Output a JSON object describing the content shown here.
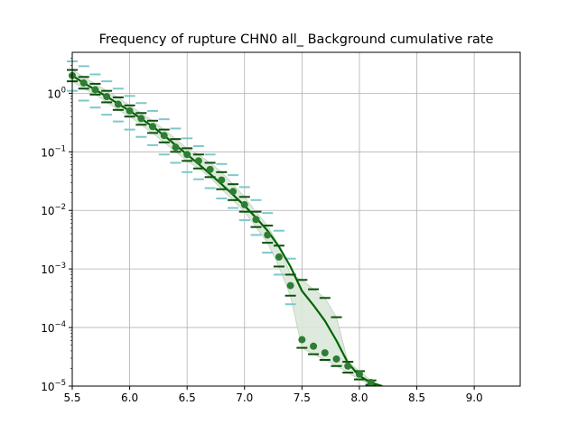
{
  "chart_data": {
    "type": "line",
    "title": "Frequency of rupture CHN0 all_ Background cumulative rate",
    "xlabel": "",
    "ylabel": "",
    "xlim": [
      5.5,
      9.4
    ],
    "ylim": [
      1e-05,
      5
    ],
    "yscale": "log",
    "grid": true,
    "x_ticks": [
      5.5,
      6.0,
      6.5,
      7.0,
      7.5,
      8.0,
      8.5,
      9.0
    ],
    "x_tick_labels": [
      "5.5",
      "6.0",
      "6.5",
      "7.0",
      "7.5",
      "8.0",
      "8.5",
      "9.0"
    ],
    "y_ticks": [
      1e-05,
      0.0001,
      0.001,
      0.01,
      0.1,
      1
    ],
    "y_tick_labels": [
      {
        "base": "10",
        "exp": "−5"
      },
      {
        "base": "10",
        "exp": "−4"
      },
      {
        "base": "10",
        "exp": "−3"
      },
      {
        "base": "10",
        "exp": "−2"
      },
      {
        "base": "10",
        "exp": "−1"
      },
      {
        "base": "10",
        "exp": "0"
      }
    ],
    "colors": {
      "model_line": "#006400",
      "points": "#2e7d32",
      "band_fill": "#dbe8db",
      "band_edge": "#b8ccb8",
      "dark_marks": "#0b4f0b",
      "light_marks": "#7fc8c8",
      "grid": "#b0b0b0"
    },
    "series": [
      {
        "kind": "model_line",
        "x": [
          5.5,
          5.6,
          5.7,
          5.8,
          5.9,
          6.0,
          6.1,
          6.2,
          6.3,
          6.4,
          6.5,
          6.6,
          6.7,
          6.8,
          6.9,
          7.0,
          7.1,
          7.2,
          7.3,
          7.4,
          7.5,
          7.6,
          7.7,
          7.8,
          7.9,
          8.0,
          8.1,
          8.2
        ],
        "y": [
          2.0,
          1.5,
          1.15,
          0.88,
          0.66,
          0.5,
          0.37,
          0.27,
          0.19,
          0.13,
          0.09,
          0.062,
          0.042,
          0.028,
          0.0185,
          0.012,
          0.0075,
          0.0045,
          0.0024,
          0.0011,
          0.00042,
          0.00024,
          0.00013,
          6e-05,
          2.5e-05,
          1.5e-05,
          1.15e-05,
          1e-05
        ]
      },
      {
        "kind": "observed_points",
        "x": [
          5.5,
          5.6,
          5.7,
          5.8,
          5.9,
          6.0,
          6.1,
          6.2,
          6.3,
          6.4,
          6.5,
          6.6,
          6.7,
          6.8,
          6.9,
          7.0,
          7.1,
          7.2,
          7.3,
          7.4,
          7.5,
          7.6,
          7.7,
          7.8,
          7.9,
          8.0,
          8.1
        ],
        "y": [
          2.0,
          1.5,
          1.15,
          0.88,
          0.65,
          0.5,
          0.37,
          0.27,
          0.19,
          0.12,
          0.09,
          0.07,
          0.05,
          0.033,
          0.021,
          0.0125,
          0.007,
          0.0038,
          0.0016,
          0.00052,
          6.2e-05,
          4.8e-05,
          3.7e-05,
          2.9e-05,
          2.2e-05,
          1.6e-05,
          1.15e-05
        ]
      },
      {
        "kind": "uncertainty_band",
        "x": [
          5.5,
          5.6,
          5.7,
          5.8,
          5.9,
          6.0,
          6.1,
          6.2,
          6.3,
          6.4,
          6.5,
          6.6,
          6.7,
          6.8,
          6.9,
          7.0,
          7.1,
          7.2,
          7.3,
          7.4,
          7.5,
          7.6,
          7.7,
          7.8,
          7.9,
          8.0,
          8.1
        ],
        "lower": [
          1.6,
          1.2,
          0.95,
          0.7,
          0.52,
          0.4,
          0.29,
          0.21,
          0.145,
          0.1,
          0.07,
          0.052,
          0.037,
          0.023,
          0.015,
          0.0095,
          0.0052,
          0.0028,
          0.0011,
          0.00035,
          4.5e-05,
          3.5e-05,
          2.8e-05,
          2.2e-05,
          1.7e-05,
          1.3e-05,
          1.05e-05
        ],
        "upper": [
          2.5,
          1.9,
          1.45,
          1.1,
          0.85,
          0.62,
          0.46,
          0.34,
          0.24,
          0.165,
          0.115,
          0.09,
          0.065,
          0.045,
          0.028,
          0.017,
          0.0095,
          0.0055,
          0.0025,
          0.0008,
          0.00065,
          0.00045,
          0.00032,
          0.00015,
          2.6e-05,
          1.8e-05,
          1.25e-05
        ]
      },
      {
        "kind": "light_marks_upper",
        "x": [
          5.5,
          5.6,
          5.7,
          5.8,
          5.9,
          6.0,
          6.1,
          6.2,
          6.3,
          6.4,
          6.5,
          6.6,
          6.7,
          6.8,
          6.9,
          7.0,
          7.1,
          7.2,
          7.3,
          7.4
        ],
        "y": [
          3.5,
          2.9,
          2.1,
          1.6,
          1.2,
          0.9,
          0.68,
          0.5,
          0.36,
          0.25,
          0.17,
          0.125,
          0.09,
          0.062,
          0.04,
          0.025,
          0.015,
          0.009,
          0.0045,
          0.0015
        ]
      },
      {
        "kind": "light_marks_lower",
        "x": [
          5.5,
          5.6,
          5.7,
          5.8,
          5.9,
          6.0,
          6.1,
          6.2,
          6.3,
          6.4,
          6.5,
          6.6,
          6.7,
          6.8,
          6.9,
          7.0,
          7.1,
          7.2,
          7.3,
          7.4
        ],
        "y": [
          1.1,
          0.75,
          0.57,
          0.43,
          0.33,
          0.24,
          0.18,
          0.13,
          0.09,
          0.065,
          0.045,
          0.034,
          0.024,
          0.016,
          0.011,
          0.0068,
          0.0038,
          0.0019,
          0.0008,
          0.00025
        ]
      }
    ]
  }
}
